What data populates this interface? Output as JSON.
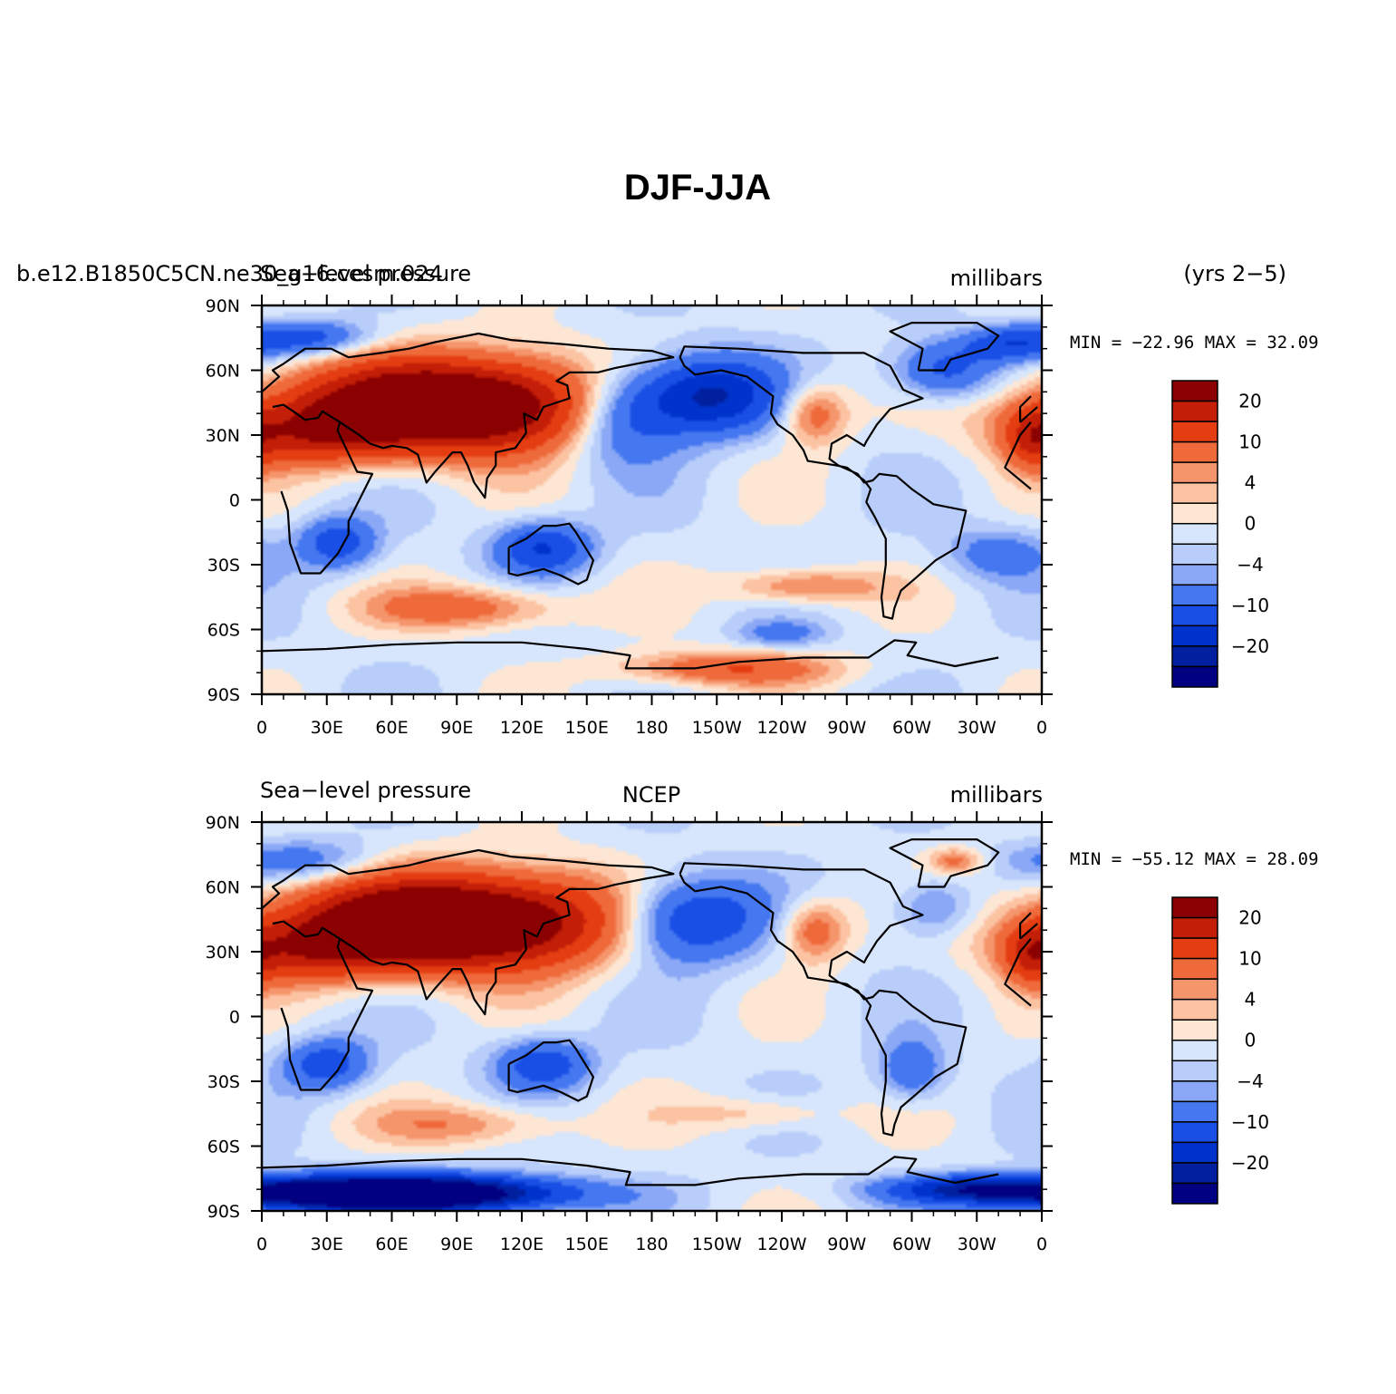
{
  "chart_data": {
    "title": "DJF-JJA",
    "type": "heatmap",
    "colors": [
      "#000080",
      "#0020a0",
      "#0033cc",
      "#1a4fe6",
      "#4477f0",
      "#8aa8f5",
      "#b8cdfa",
      "#d7e6fc",
      "#fde6d4",
      "#fcc3a3",
      "#f5956c",
      "#ef6a3b",
      "#e43d12",
      "#c21e08",
      "#8b0000"
    ],
    "colorbar_labels": [
      {
        "value": 20,
        "label": "20"
      },
      {
        "value": 10,
        "label": "10"
      },
      {
        "value": 4,
        "label": "4"
      },
      {
        "value": 0,
        "label": "0"
      },
      {
        "value": -4,
        "label": "−4"
      },
      {
        "value": -10,
        "label": "−10"
      },
      {
        "value": -20,
        "label": "−20"
      }
    ],
    "x_ticks": [
      "0",
      "30E",
      "60E",
      "90E",
      "120E",
      "150E",
      "180",
      "150W",
      "120W",
      "90W",
      "60W",
      "30W",
      "0"
    ],
    "y_ticks": [
      "90N",
      "60N",
      "30N",
      "0",
      "30S",
      "60S",
      "90S"
    ],
    "panels": [
      {
        "left": "b.e12.B1850C5CN.ne30_g16.cesm.024",
        "left2": "Sea−level pressure",
        "center": "",
        "right": "millibars",
        "extra": "(yrs 2−5)",
        "stats": "MIN = −22.96  MAX =   32.09",
        "min": -22.96,
        "max": 32.09,
        "blobs": [
          {
            "lon": 100,
            "lat": 45,
            "w": 75,
            "h": 22,
            "v": 24
          },
          {
            "lon": 60,
            "lat": 40,
            "w": 70,
            "h": 20,
            "v": 14
          },
          {
            "lon": 20,
            "lat": 30,
            "w": 35,
            "h": 14,
            "v": 10
          },
          {
            "lon": 165,
            "lat": 40,
            "w": 28,
            "h": 22,
            "v": -16
          },
          {
            "lon": 205,
            "lat": 48,
            "w": 32,
            "h": 18,
            "v": -22
          },
          {
            "lon": 255,
            "lat": 40,
            "w": 15,
            "h": 14,
            "v": 10
          },
          {
            "lon": 315,
            "lat": 60,
            "w": 25,
            "h": 14,
            "v": -12
          },
          {
            "lon": 345,
            "lat": 72,
            "w": 20,
            "h": 8,
            "v": -10
          },
          {
            "lon": 20,
            "lat": 75,
            "w": 30,
            "h": 8,
            "v": -12
          },
          {
            "lon": 355,
            "lat": 28,
            "w": 12,
            "h": 14,
            "v": 9
          },
          {
            "lon": 35,
            "lat": -20,
            "w": 18,
            "h": 12,
            "v": -12
          },
          {
            "lon": 130,
            "lat": -22,
            "w": 22,
            "h": 12,
            "v": -14
          },
          {
            "lon": 95,
            "lat": -50,
            "w": 45,
            "h": 10,
            "v": 10
          },
          {
            "lon": 250,
            "lat": -40,
            "w": 35,
            "h": 8,
            "v": 9
          },
          {
            "lon": 240,
            "lat": -62,
            "w": 20,
            "h": 6,
            "v": -6
          },
          {
            "lon": 215,
            "lat": -78,
            "w": 50,
            "h": 8,
            "v": 11
          },
          {
            "lon": 340,
            "lat": -25,
            "w": 25,
            "h": 12,
            "v": -7
          }
        ]
      },
      {
        "left": "Sea−level pressure",
        "left2": "",
        "center": "NCEP",
        "right": "millibars",
        "extra": "",
        "stats": "MIN = −55.12  MAX =   28.09",
        "min": -55.12,
        "max": 28.09,
        "blobs": [
          {
            "lon": 100,
            "lat": 45,
            "w": 75,
            "h": 22,
            "v": 26
          },
          {
            "lon": 60,
            "lat": 40,
            "w": 70,
            "h": 20,
            "v": 14
          },
          {
            "lon": 20,
            "lat": 30,
            "w": 35,
            "h": 14,
            "v": 10
          },
          {
            "lon": 195,
            "lat": 45,
            "w": 35,
            "h": 20,
            "v": -18
          },
          {
            "lon": 255,
            "lat": 40,
            "w": 15,
            "h": 14,
            "v": 10
          },
          {
            "lon": 320,
            "lat": 72,
            "w": 12,
            "h": 6,
            "v": 8
          },
          {
            "lon": 310,
            "lat": 50,
            "w": 20,
            "h": 14,
            "v": -8
          },
          {
            "lon": 20,
            "lat": 72,
            "w": 35,
            "h": 10,
            "v": -8
          },
          {
            "lon": 355,
            "lat": 28,
            "w": 12,
            "h": 14,
            "v": 9
          },
          {
            "lon": 30,
            "lat": -22,
            "w": 20,
            "h": 12,
            "v": -12
          },
          {
            "lon": 130,
            "lat": -22,
            "w": 22,
            "h": 12,
            "v": -12
          },
          {
            "lon": 95,
            "lat": -50,
            "w": 45,
            "h": 10,
            "v": 7
          },
          {
            "lon": 230,
            "lat": -45,
            "w": 35,
            "h": 8,
            "v": 5
          },
          {
            "lon": 60,
            "lat": -82,
            "w": 70,
            "h": 8,
            "v": -45
          },
          {
            "lon": 330,
            "lat": -80,
            "w": 40,
            "h": 6,
            "v": -18
          },
          {
            "lon": 300,
            "lat": -25,
            "w": 15,
            "h": 14,
            "v": -9
          }
        ]
      }
    ]
  }
}
